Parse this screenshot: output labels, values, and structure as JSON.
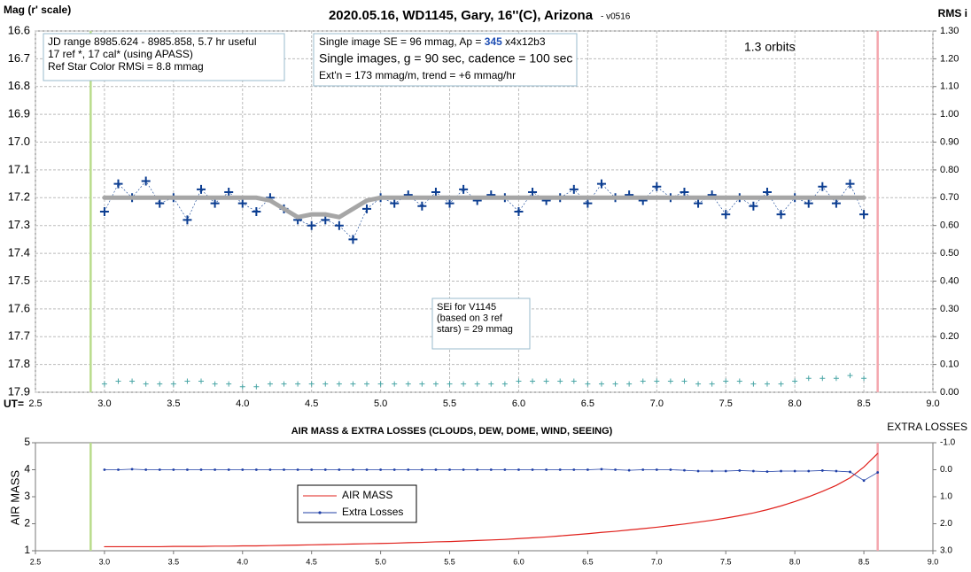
{
  "chart_data": [
    {
      "type": "scatter",
      "title": "2020.05.16, WD1145, Gary, 16''(C), Arizona",
      "subtitle": "- v0516",
      "x_label": "UT=",
      "y_label": "Mag (r' scale)",
      "y2_label": "RMS i",
      "xlim": [
        2.5,
        9.0
      ],
      "xticks": [
        2.5,
        {
          "value": 3,
          "label": "3.0"
        },
        3.5,
        {
          "value": 4,
          "label": "4.0"
        },
        4.5,
        {
          "value": 5,
          "label": "5.0"
        },
        5.5,
        {
          "value": 6,
          "label": "6.0"
        },
        6.5,
        {
          "value": 7,
          "label": "7.0"
        },
        7.5,
        {
          "value": 8,
          "label": "8.0"
        },
        8.5,
        {
          "value": 9,
          "label": "9.0"
        }
      ],
      "ylim": [
        17.9,
        16.6
      ],
      "yticks": [
        16.6,
        16.7,
        16.8,
        16.9,
        {
          "value": 17,
          "label": "17.0"
        },
        17.1,
        17.2,
        17.3,
        17.4,
        17.5,
        17.6,
        17.7,
        17.8,
        17.9
      ],
      "y2lim": [
        0,
        1.3
      ],
      "y2ticks": [
        {
          "value": 0,
          "label": "0.00"
        },
        {
          "value": 0.1,
          "label": "0.10"
        },
        {
          "value": 0.2,
          "label": "0.20"
        },
        {
          "value": 0.3,
          "label": "0.30"
        },
        {
          "value": 0.4,
          "label": "0.40"
        },
        {
          "value": 0.5,
          "label": "0.50"
        },
        {
          "value": 0.6,
          "label": "0.60"
        },
        {
          "value": 0.7,
          "label": "0.70"
        },
        {
          "value": 0.8,
          "label": "0.80"
        },
        {
          "value": 0.9,
          "label": "0.90"
        },
        {
          "value": 1,
          "label": "1.00"
        },
        {
          "value": 1.1,
          "label": "1.10"
        },
        {
          "value": 1.2,
          "label": "1.20"
        },
        {
          "value": 1.3,
          "label": "1.30"
        }
      ],
      "grid": true,
      "x": [
        3.0,
        3.1,
        3.2,
        3.3,
        3.4,
        3.5,
        3.6,
        3.7,
        3.8,
        3.9,
        4.0,
        4.1,
        4.2,
        4.3,
        4.4,
        4.5,
        4.6,
        4.7,
        4.8,
        4.9,
        5.0,
        5.1,
        5.2,
        5.3,
        5.4,
        5.5,
        5.6,
        5.7,
        5.8,
        5.9,
        6.0,
        6.1,
        6.2,
        6.3,
        6.4,
        6.5,
        6.6,
        6.7,
        6.8,
        6.9,
        7.0,
        7.1,
        7.2,
        7.3,
        7.4,
        7.5,
        7.6,
        7.7,
        7.8,
        7.9,
        8.0,
        8.1,
        8.2,
        8.3,
        8.4,
        8.5
      ],
      "series": [
        {
          "color": "#0b3d91",
          "marker": "cross",
          "values": [
            17.25,
            17.15,
            17.2,
            17.14,
            17.22,
            17.2,
            17.28,
            17.17,
            17.22,
            17.18,
            17.22,
            17.25,
            17.2,
            17.24,
            17.28,
            17.3,
            17.28,
            17.3,
            17.35,
            17.24,
            17.2,
            17.22,
            17.19,
            17.23,
            17.18,
            17.22,
            17.17,
            17.21,
            17.19,
            17.2,
            17.25,
            17.18,
            17.21,
            17.2,
            17.17,
            17.22,
            17.15,
            17.2,
            17.19,
            17.21,
            17.16,
            17.2,
            17.18,
            17.22,
            17.19,
            17.26,
            17.2,
            17.23,
            17.18,
            17.26,
            17.2,
            17.22,
            17.16,
            17.22,
            17.15,
            17.26
          ]
        },
        {
          "color": "#a6a6a6",
          "marker": "line",
          "values": [
            17.2,
            17.2,
            17.2,
            17.2,
            17.2,
            17.2,
            17.2,
            17.2,
            17.2,
            17.2,
            17.2,
            17.2,
            17.21,
            17.24,
            17.27,
            17.26,
            17.26,
            17.27,
            17.24,
            17.21,
            17.2,
            17.2,
            17.2,
            17.2,
            17.2,
            17.2,
            17.2,
            17.2,
            17.2,
            17.2,
            17.2,
            17.2,
            17.2,
            17.2,
            17.2,
            17.2,
            17.2,
            17.2,
            17.2,
            17.2,
            17.2,
            17.2,
            17.2,
            17.2,
            17.2,
            17.2,
            17.2,
            17.2,
            17.2,
            17.2,
            17.2,
            17.2,
            17.2,
            17.2,
            17.2,
            17.2
          ]
        },
        {
          "color": "#4aa6a6",
          "marker": "small-cross",
          "axis": "y2",
          "values": [
            0.03,
            0.04,
            0.04,
            0.03,
            0.03,
            0.03,
            0.04,
            0.04,
            0.03,
            0.03,
            0.02,
            0.02,
            0.03,
            0.03,
            0.03,
            0.03,
            0.03,
            0.03,
            0.03,
            0.03,
            0.03,
            0.03,
            0.03,
            0.03,
            0.03,
            0.03,
            0.03,
            0.03,
            0.03,
            0.03,
            0.04,
            0.04,
            0.04,
            0.04,
            0.04,
            0.03,
            0.03,
            0.03,
            0.03,
            0.04,
            0.04,
            0.04,
            0.04,
            0.03,
            0.03,
            0.04,
            0.04,
            0.03,
            0.03,
            0.03,
            0.04,
            0.05,
            0.05,
            0.05,
            0.06,
            0.05
          ]
        }
      ],
      "vlines": [
        {
          "x": 2.9,
          "color": "#b9dc8c"
        },
        {
          "x": 8.6,
          "color": "#f4a7ae"
        }
      ],
      "info_box": [
        "JD range 8985.624 - 8985.858, 5.7 hr useful",
        "17 ref *, 17 cal* (using APASS)",
        "Ref Star Color RMSi = 8.8 mmag"
      ],
      "settings_box": {
        "line1": [
          "Single image SE = 96 mmag, Ap = ",
          "345",
          " x4x12b3"
        ],
        "line2": "Single images, g = 90 sec, cadence = 100 sec",
        "line3": "Ext'n = 173 mmag/m, trend = +6 mmag/hr"
      },
      "orbits": "1.3 orbits",
      "sei_box": [
        "SEi for V1145",
        "(based on 3 ref",
        "stars) = 29 mmag"
      ]
    },
    {
      "type": "line",
      "title": "AIR MASS & EXTRA LOSSES (CLOUDS, DEW, DOME, WIND, SEEING)",
      "y_label": "AIR MASS",
      "y2_label": "EXTRA LOSSES",
      "xlim": [
        2.5,
        9.0
      ],
      "xticks": [
        2.5,
        {
          "value": 3,
          "label": "3.0"
        },
        3.5,
        {
          "value": 4,
          "label": "4.0"
        },
        4.5,
        {
          "value": 5,
          "label": "5.0"
        },
        5.5,
        {
          "value": 6,
          "label": "6.0"
        },
        6.5,
        {
          "value": 7,
          "label": "7.0"
        },
        7.5,
        {
          "value": 8,
          "label": "8.0"
        },
        8.5,
        {
          "value": 9,
          "label": "9.0"
        }
      ],
      "ylim": [
        1,
        5
      ],
      "yticks": [
        1,
        2,
        3,
        4,
        5
      ],
      "y2lim": [
        3,
        -1
      ],
      "y2ticks": [
        {
          "value": -1,
          "label": "-1.0"
        },
        {
          "value": 0,
          "label": "0.0"
        },
        {
          "value": 1,
          "label": "1.0"
        },
        {
          "value": 2,
          "label": "2.0"
        },
        {
          "value": 3,
          "label": "3.0"
        }
      ],
      "legend": "lower left",
      "x": [
        3.0,
        3.1,
        3.2,
        3.3,
        3.4,
        3.5,
        3.6,
        3.7,
        3.8,
        3.9,
        4.0,
        4.1,
        4.2,
        4.3,
        4.4,
        4.5,
        4.6,
        4.7,
        4.8,
        4.9,
        5.0,
        5.1,
        5.2,
        5.3,
        5.4,
        5.5,
        5.6,
        5.7,
        5.8,
        5.9,
        6.0,
        6.1,
        6.2,
        6.3,
        6.4,
        6.5,
        6.6,
        6.7,
        6.8,
        6.9,
        7.0,
        7.1,
        7.2,
        7.3,
        7.4,
        7.5,
        7.6,
        7.7,
        7.8,
        7.9,
        8.0,
        8.1,
        8.2,
        8.3,
        8.4,
        8.5,
        8.6
      ],
      "series": [
        {
          "name": "AIR MASS",
          "color": "#e0201b",
          "marker": "line",
          "values": [
            1.15,
            1.15,
            1.15,
            1.15,
            1.15,
            1.16,
            1.16,
            1.16,
            1.17,
            1.17,
            1.18,
            1.18,
            1.19,
            1.2,
            1.21,
            1.22,
            1.23,
            1.24,
            1.25,
            1.26,
            1.27,
            1.28,
            1.3,
            1.31,
            1.33,
            1.34,
            1.36,
            1.38,
            1.4,
            1.42,
            1.45,
            1.48,
            1.51,
            1.55,
            1.59,
            1.63,
            1.68,
            1.72,
            1.77,
            1.82,
            1.87,
            1.93,
            1.99,
            2.06,
            2.13,
            2.21,
            2.3,
            2.4,
            2.52,
            2.66,
            2.82,
            3.0,
            3.2,
            3.42,
            3.7,
            4.1,
            4.6
          ]
        },
        {
          "name": "Extra Losses",
          "color": "#1f3fa6",
          "marker": "dot-line",
          "axis": "y2",
          "values": [
            0.0,
            0.0,
            -0.02,
            0.0,
            0.0,
            0.0,
            0.0,
            0.0,
            0.0,
            0.0,
            0.0,
            0.0,
            0.0,
            0.0,
            0.0,
            0.0,
            0.0,
            0.0,
            0.0,
            0.0,
            0.0,
            0.0,
            0.0,
            0.0,
            0.0,
            0.0,
            0.0,
            0.0,
            0.0,
            0.0,
            0.0,
            0.0,
            0.0,
            0.0,
            0.0,
            0.0,
            -0.02,
            0.0,
            0.02,
            0.0,
            0.0,
            0.0,
            0.02,
            0.05,
            0.05,
            0.05,
            0.03,
            0.05,
            0.07,
            0.05,
            0.05,
            0.05,
            0.03,
            0.05,
            0.08,
            0.4,
            0.1
          ]
        }
      ],
      "vlines": [
        {
          "x": 2.9,
          "color": "#b9dc8c"
        },
        {
          "x": 8.6,
          "color": "#f4a7ae"
        }
      ]
    }
  ]
}
